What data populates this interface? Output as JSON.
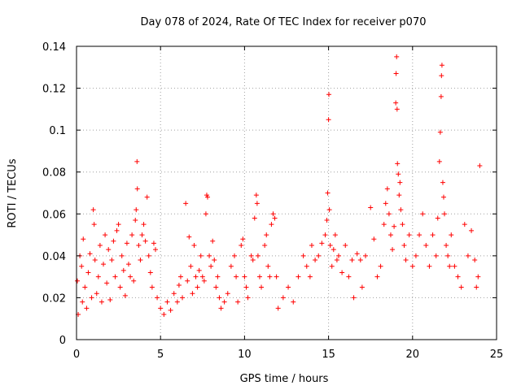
{
  "chart_data": {
    "type": "scatter",
    "title": "Day 078 of 2024, Rate Of TEC Index for receiver p070",
    "xlabel": "GPS time / hours",
    "ylabel": "ROTI / TECUs",
    "xlim": [
      0,
      25
    ],
    "ylim": [
      0,
      0.14
    ],
    "xticks": [
      0,
      5,
      10,
      15,
      20,
      25
    ],
    "xtick_labels": [
      "0",
      "5",
      "10",
      "15",
      "20",
      "25"
    ],
    "yticks": [
      0,
      0.02,
      0.04,
      0.06,
      0.08,
      0.1,
      0.12,
      0.14
    ],
    "ytick_labels": [
      "0",
      "0.02",
      "0.04",
      "0.06",
      "0.08",
      "0.1",
      "0.12",
      "0.14"
    ],
    "grid": true,
    "marker": "+",
    "color": "#ff0000",
    "series": [
      {
        "name": "ROTI",
        "points": [
          [
            0.05,
            0.028
          ],
          [
            0.1,
            0.012
          ],
          [
            0.2,
            0.04
          ],
          [
            0.3,
            0.035
          ],
          [
            0.35,
            0.018
          ],
          [
            0.4,
            0.048
          ],
          [
            0.5,
            0.025
          ],
          [
            0.6,
            0.015
          ],
          [
            0.7,
            0.032
          ],
          [
            0.8,
            0.041
          ],
          [
            0.9,
            0.02
          ],
          [
            1.0,
            0.062
          ],
          [
            1.05,
            0.055
          ],
          [
            1.1,
            0.038
          ],
          [
            1.2,
            0.022
          ],
          [
            1.3,
            0.03
          ],
          [
            1.4,
            0.045
          ],
          [
            1.5,
            0.018
          ],
          [
            1.6,
            0.036
          ],
          [
            1.7,
            0.05
          ],
          [
            1.8,
            0.027
          ],
          [
            1.9,
            0.043
          ],
          [
            2.0,
            0.019
          ],
          [
            2.1,
            0.038
          ],
          [
            2.2,
            0.047
          ],
          [
            2.3,
            0.03
          ],
          [
            2.4,
            0.052
          ],
          [
            2.5,
            0.055
          ],
          [
            2.6,
            0.025
          ],
          [
            2.7,
            0.04
          ],
          [
            2.8,
            0.033
          ],
          [
            2.9,
            0.021
          ],
          [
            3.0,
            0.046
          ],
          [
            3.1,
            0.036
          ],
          [
            3.2,
            0.03
          ],
          [
            3.3,
            0.05
          ],
          [
            3.4,
            0.028
          ],
          [
            3.5,
            0.057
          ],
          [
            3.55,
            0.062
          ],
          [
            3.6,
            0.085
          ],
          [
            3.62,
            0.072
          ],
          [
            3.7,
            0.045
          ],
          [
            3.8,
            0.038
          ],
          [
            3.9,
            0.05
          ],
          [
            4.0,
            0.055
          ],
          [
            4.1,
            0.047
          ],
          [
            4.2,
            0.068
          ],
          [
            4.3,
            0.04
          ],
          [
            4.4,
            0.032
          ],
          [
            4.5,
            0.025
          ],
          [
            4.6,
            0.046
          ],
          [
            4.7,
            0.043
          ],
          [
            4.8,
            0.02
          ],
          [
            5.0,
            0.015
          ],
          [
            5.2,
            0.012
          ],
          [
            5.4,
            0.018
          ],
          [
            5.6,
            0.014
          ],
          [
            5.8,
            0.022
          ],
          [
            6.0,
            0.018
          ],
          [
            6.1,
            0.026
          ],
          [
            6.2,
            0.03
          ],
          [
            6.3,
            0.02
          ],
          [
            6.5,
            0.065
          ],
          [
            6.6,
            0.028
          ],
          [
            6.7,
            0.049
          ],
          [
            6.8,
            0.035
          ],
          [
            6.9,
            0.022
          ],
          [
            7.0,
            0.045
          ],
          [
            7.1,
            0.03
          ],
          [
            7.2,
            0.025
          ],
          [
            7.3,
            0.033
          ],
          [
            7.4,
            0.04
          ],
          [
            7.5,
            0.03
          ],
          [
            7.6,
            0.028
          ],
          [
            7.7,
            0.06
          ],
          [
            7.75,
            0.069
          ],
          [
            7.8,
            0.068
          ],
          [
            7.9,
            0.04
          ],
          [
            8.0,
            0.035
          ],
          [
            8.1,
            0.047
          ],
          [
            8.2,
            0.038
          ],
          [
            8.3,
            0.025
          ],
          [
            8.4,
            0.03
          ],
          [
            8.5,
            0.02
          ],
          [
            8.6,
            0.015
          ],
          [
            8.8,
            0.018
          ],
          [
            9.0,
            0.022
          ],
          [
            9.2,
            0.035
          ],
          [
            9.4,
            0.04
          ],
          [
            9.5,
            0.03
          ],
          [
            9.6,
            0.018
          ],
          [
            9.8,
            0.045
          ],
          [
            9.9,
            0.048
          ],
          [
            10.0,
            0.03
          ],
          [
            10.1,
            0.025
          ],
          [
            10.2,
            0.02
          ],
          [
            10.4,
            0.04
          ],
          [
            10.5,
            0.038
          ],
          [
            10.6,
            0.058
          ],
          [
            10.7,
            0.069
          ],
          [
            10.75,
            0.065
          ],
          [
            10.8,
            0.04
          ],
          [
            10.9,
            0.03
          ],
          [
            11.0,
            0.025
          ],
          [
            11.2,
            0.045
          ],
          [
            11.3,
            0.05
          ],
          [
            11.4,
            0.035
          ],
          [
            11.5,
            0.03
          ],
          [
            11.6,
            0.055
          ],
          [
            11.7,
            0.06
          ],
          [
            11.8,
            0.058
          ],
          [
            11.9,
            0.03
          ],
          [
            12.0,
            0.015
          ],
          [
            12.3,
            0.02
          ],
          [
            12.6,
            0.025
          ],
          [
            12.9,
            0.018
          ],
          [
            13.2,
            0.03
          ],
          [
            13.5,
            0.04
          ],
          [
            13.7,
            0.035
          ],
          [
            13.9,
            0.03
          ],
          [
            14.0,
            0.045
          ],
          [
            14.2,
            0.038
          ],
          [
            14.4,
            0.04
          ],
          [
            14.6,
            0.046
          ],
          [
            14.8,
            0.05
          ],
          [
            14.9,
            0.057
          ],
          [
            14.95,
            0.07
          ],
          [
            15.0,
            0.105
          ],
          [
            15.02,
            0.117
          ],
          [
            15.05,
            0.062
          ],
          [
            15.1,
            0.045
          ],
          [
            15.2,
            0.035
          ],
          [
            15.3,
            0.043
          ],
          [
            15.4,
            0.05
          ],
          [
            15.5,
            0.038
          ],
          [
            15.6,
            0.04
          ],
          [
            15.8,
            0.032
          ],
          [
            16.0,
            0.045
          ],
          [
            16.2,
            0.03
          ],
          [
            16.4,
            0.038
          ],
          [
            16.5,
            0.02
          ],
          [
            16.7,
            0.041
          ],
          [
            16.9,
            0.038
          ],
          [
            17.0,
            0.025
          ],
          [
            17.2,
            0.04
          ],
          [
            17.5,
            0.063
          ],
          [
            17.7,
            0.048
          ],
          [
            17.9,
            0.03
          ],
          [
            18.1,
            0.035
          ],
          [
            18.3,
            0.055
          ],
          [
            18.4,
            0.065
          ],
          [
            18.5,
            0.072
          ],
          [
            18.6,
            0.06
          ],
          [
            18.7,
            0.05
          ],
          [
            18.8,
            0.043
          ],
          [
            18.9,
            0.054
          ],
          [
            19.0,
            0.113
          ],
          [
            19.02,
            0.127
          ],
          [
            19.05,
            0.135
          ],
          [
            19.08,
            0.11
          ],
          [
            19.1,
            0.084
          ],
          [
            19.15,
            0.079
          ],
          [
            19.2,
            0.069
          ],
          [
            19.25,
            0.075
          ],
          [
            19.3,
            0.062
          ],
          [
            19.4,
            0.055
          ],
          [
            19.5,
            0.045
          ],
          [
            19.6,
            0.038
          ],
          [
            19.8,
            0.05
          ],
          [
            20.0,
            0.035
          ],
          [
            20.2,
            0.04
          ],
          [
            20.4,
            0.05
          ],
          [
            20.6,
            0.06
          ],
          [
            20.8,
            0.045
          ],
          [
            21.0,
            0.035
          ],
          [
            21.2,
            0.05
          ],
          [
            21.4,
            0.04
          ],
          [
            21.5,
            0.058
          ],
          [
            21.6,
            0.085
          ],
          [
            21.65,
            0.099
          ],
          [
            21.7,
            0.116
          ],
          [
            21.72,
            0.126
          ],
          [
            21.75,
            0.131
          ],
          [
            21.8,
            0.075
          ],
          [
            21.85,
            0.068
          ],
          [
            21.9,
            0.06
          ],
          [
            22.0,
            0.045
          ],
          [
            22.1,
            0.04
          ],
          [
            22.2,
            0.035
          ],
          [
            22.3,
            0.05
          ],
          [
            22.5,
            0.035
          ],
          [
            22.7,
            0.03
          ],
          [
            22.9,
            0.025
          ],
          [
            23.1,
            0.055
          ],
          [
            23.3,
            0.04
          ],
          [
            23.5,
            0.052
          ],
          [
            23.7,
            0.038
          ],
          [
            23.8,
            0.025
          ],
          [
            23.9,
            0.03
          ],
          [
            24.0,
            0.083
          ]
        ]
      }
    ]
  }
}
